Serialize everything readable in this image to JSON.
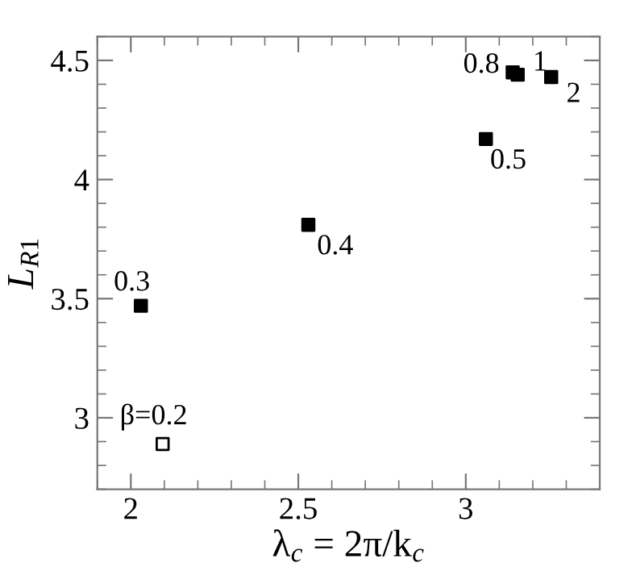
{
  "chart_data": {
    "type": "scatter",
    "xlabel": "λ$_{c}$ = 2π/k$_{c}$",
    "ylabel": "L$_{R1}$",
    "x": [
      2.095,
      2.03,
      2.53,
      3.06,
      3.14,
      3.155,
      3.255
    ],
    "series": [
      {
        "color": "#000000",
        "colors": [
          "#ffffff",
          "#000000",
          "#000000",
          "#000000",
          "#000000",
          "#000000",
          "#000000"
        ],
        "values": [
          2.89,
          3.47,
          3.81,
          4.17,
          4.45,
          4.44,
          4.43
        ]
      }
    ],
    "marker": "square",
    "grid": false,
    "legend": false,
    "xlim": [
      1.9,
      3.4
    ],
    "xticks": [
      2,
      2.5,
      3
    ],
    "ylim": [
      2.7,
      4.6
    ],
    "yticks": [
      3,
      3.5,
      4,
      4.5
    ],
    "annotations": [
      {
        "text": "β=0.2",
        "x": 2.095,
        "y": 2.89
      },
      {
        "text": "0.3",
        "x": 2.03,
        "y": 3.47
      },
      {
        "text": "0.4",
        "x": 2.53,
        "y": 3.81
      },
      {
        "text": "0.5",
        "x": 3.06,
        "y": 4.17
      },
      {
        "text": "0.8",
        "x": 3.14,
        "y": 4.45
      },
      {
        "text": "1",
        "x": 3.155,
        "y": 4.44
      },
      {
        "text": "2",
        "x": 3.255,
        "y": 4.43
      }
    ]
  }
}
